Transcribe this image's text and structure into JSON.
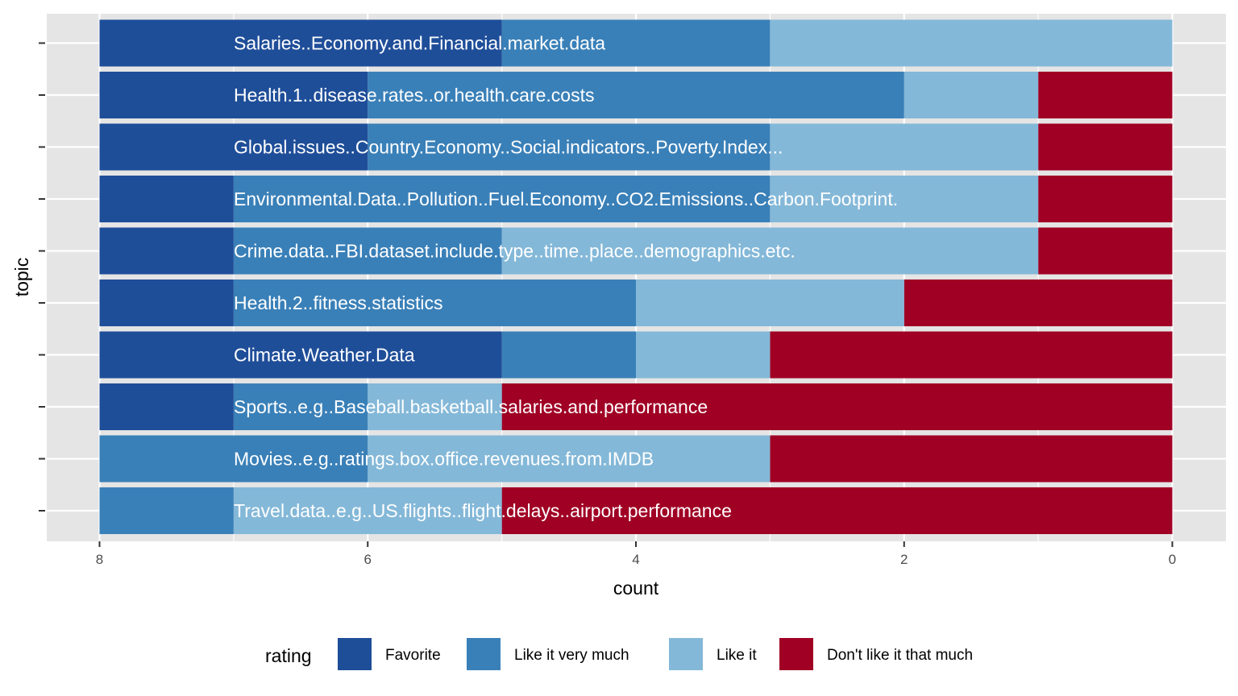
{
  "chart_data": {
    "type": "bar",
    "orientation": "horizontal",
    "stacked": true,
    "title": "",
    "xlabel": "count",
    "ylabel": "topic",
    "xlim": [
      8,
      0
    ],
    "x_reversed": true,
    "x_ticks": [
      "8",
      "6",
      "4",
      "2",
      "0"
    ],
    "x_tick_values": [
      8,
      6,
      4,
      2,
      0
    ],
    "grid": true,
    "legend_position": "bottom",
    "legend_title": "rating",
    "categories": [
      "Salaries..Economy.and.Financial.market.data",
      "Health.1..disease.rates..or.health.care.costs",
      "Global.issues..Country.Economy..Social.indicators..Poverty.Index...",
      "Environmental.Data..Pollution..Fuel.Economy..CO2.Emissions..Carbon.Footprint.",
      "Crime.data..FBI.dataset.include.type..time..place..demographics.etc.",
      "Health.2..fitness.statistics",
      "Climate.Weather.Data",
      "Sports..e.g..Baseball.basketball.salaries.and.performance",
      "Movies..e.g..ratings.box.office.revenues.from.IMDB",
      "Travel.data..e.g..US.flights..flight.delays..airport.performance"
    ],
    "series": [
      {
        "name": "Favorite",
        "color": "#1f4e99",
        "values": [
          3,
          2,
          2,
          1,
          1,
          1,
          3,
          1,
          0,
          0
        ]
      },
      {
        "name": "Like it very much",
        "color": "#3a80b8",
        "values": [
          2,
          4,
          3,
          4,
          2,
          3,
          1,
          1,
          2,
          1
        ]
      },
      {
        "name": "Like it",
        "color": "#84b8d8",
        "values": [
          3,
          1,
          2,
          2,
          4,
          2,
          1,
          1,
          3,
          2
        ]
      },
      {
        "name": "Don't like it that much",
        "color": "#a00024",
        "values": [
          0,
          1,
          1,
          1,
          1,
          2,
          3,
          5,
          3,
          5
        ]
      }
    ]
  },
  "colors": {
    "panel_background": "#e5e5e5",
    "grid_major": "#ffffff",
    "tick_text": "#4d4d4d"
  }
}
